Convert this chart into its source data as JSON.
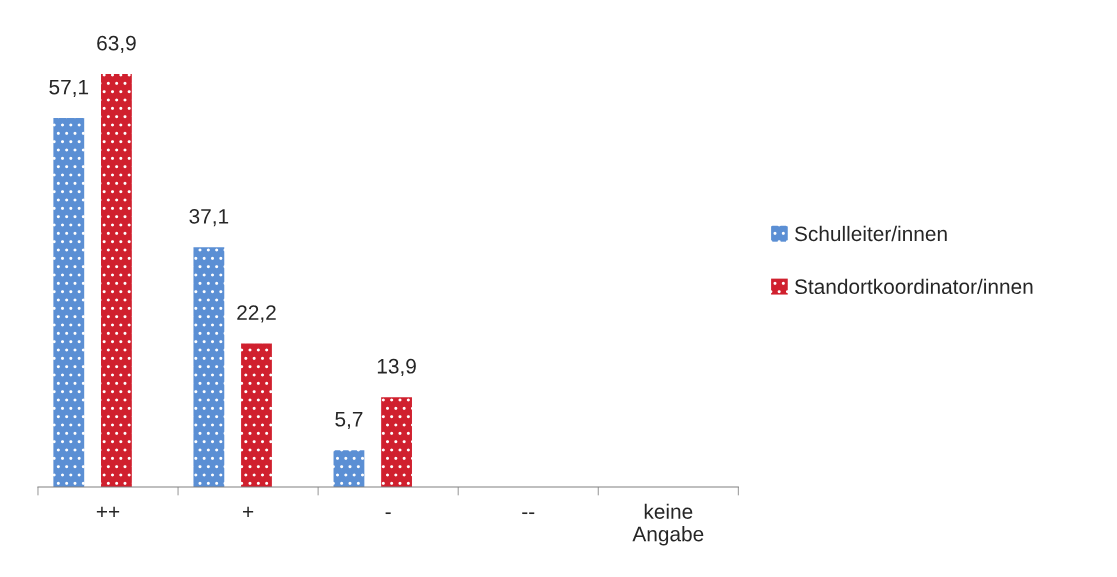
{
  "chart_data": {
    "type": "bar",
    "categories": [
      "++",
      "+",
      "-",
      "--",
      "keine\nAngabe"
    ],
    "series": [
      {
        "name": "Schulleiter/innen",
        "color": "#5b8fd4",
        "values": [
          57.1,
          37.1,
          5.7,
          null,
          null
        ],
        "value_labels": [
          "57,1",
          "37,1",
          "5,7",
          null,
          null
        ]
      },
      {
        "name": "Standortkoordinator/innen",
        "color": "#d0202e",
        "values": [
          63.9,
          22.2,
          13.9,
          null,
          null
        ],
        "value_labels": [
          "63,9",
          "22,2",
          "13,9",
          null,
          null
        ]
      }
    ],
    "legend": "right",
    "grid": false,
    "tick_labels": "x"
  }
}
